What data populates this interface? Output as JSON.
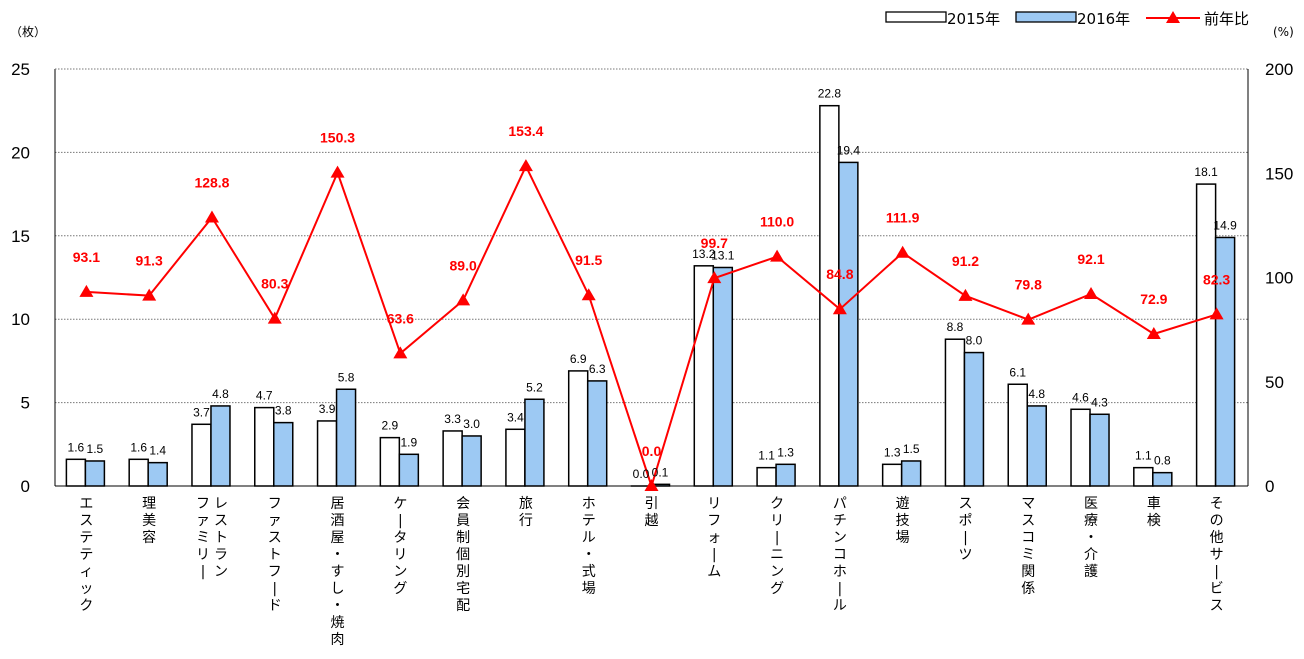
{
  "chart_data": {
    "type": "bar",
    "title": "",
    "left_unit": "（枚）",
    "right_unit": "(%)",
    "categories": [
      "エステティック",
      "理美容",
      "ファミリーレストラン",
      "ファストフード",
      "居酒屋・すし・焼肉",
      "ケータリング",
      "会員制個別宅配",
      "旅行",
      "ホテル・式場",
      "引越",
      "リフォーム",
      "クリーニング",
      "パチンコホール",
      "遊技場",
      "スポーツ",
      "マスコミ関係",
      "医療・介護",
      "車検",
      "その他サービス"
    ],
    "category_lines": [
      [
        "エステティック"
      ],
      [
        "理美容"
      ],
      [
        "ファミリー",
        "レストラン"
      ],
      [
        "ファストフード"
      ],
      [
        "居酒屋・すし・焼肉"
      ],
      [
        "ケータリング"
      ],
      [
        "会員制個別宅配"
      ],
      [
        "旅行"
      ],
      [
        "ホテル・式場"
      ],
      [
        "引越"
      ],
      [
        "リフォーム"
      ],
      [
        "クリーニング"
      ],
      [
        "パチンコホール"
      ],
      [
        "遊技場"
      ],
      [
        "スポーツ"
      ],
      [
        "マスコミ関係"
      ],
      [
        "医療・介護"
      ],
      [
        "車検"
      ],
      [
        "その他サービス"
      ]
    ],
    "series": [
      {
        "name": "2015年",
        "axis": "left",
        "kind": "bar",
        "color": "#ffffff",
        "labels": [
          "1.6",
          "1.6",
          "3.7",
          "4.7",
          "3.9",
          "2.9",
          "3.3",
          "3.4",
          "6.9",
          "0.0",
          "13.2",
          "1.1",
          "22.8",
          "1.3",
          "8.8",
          "6.1",
          "4.6",
          "1.1",
          "18.1"
        ],
        "values": [
          1.6,
          1.6,
          3.7,
          4.7,
          3.9,
          2.9,
          3.3,
          3.4,
          6.9,
          0.0,
          13.2,
          1.1,
          22.8,
          1.3,
          8.8,
          6.1,
          4.6,
          1.1,
          18.1
        ]
      },
      {
        "name": "2016年",
        "axis": "left",
        "kind": "bar",
        "color": "#9dc9f3",
        "labels": [
          "1.5",
          "1.4",
          "4.8",
          "3.8",
          "5.8",
          "1.9",
          "3.0",
          "5.2",
          "6.3",
          "0.1",
          "13.1",
          "1.3",
          "19.4",
          "1.5",
          "8.0",
          "4.8",
          "4.3",
          "0.8",
          "14.9"
        ],
        "values": [
          1.5,
          1.4,
          4.8,
          3.8,
          5.8,
          1.9,
          3.0,
          5.2,
          6.3,
          0.1,
          13.1,
          1.3,
          19.4,
          1.5,
          8.0,
          4.8,
          4.3,
          0.8,
          14.9
        ]
      },
      {
        "name": "前年比",
        "axis": "right",
        "kind": "line",
        "color": "#ff0000",
        "labels": [
          "93.1",
          "91.3",
          "128.8",
          "80.3",
          "150.3",
          "63.6",
          "89.0",
          "153.4",
          "91.5",
          "0.0",
          "99.7",
          "110.0",
          "84.8",
          "111.9",
          "91.2",
          "79.8",
          "92.1",
          "72.9",
          "82.3"
        ],
        "values": [
          93.1,
          91.3,
          128.8,
          80.3,
          150.3,
          63.6,
          89.0,
          153.4,
          91.5,
          0.0,
          99.7,
          110.0,
          84.8,
          111.9,
          91.2,
          79.8,
          92.1,
          72.9,
          82.3
        ]
      }
    ],
    "ylim_left": [
      0,
      25
    ],
    "yticks_left": [
      "0",
      "5",
      "10",
      "15",
      "20",
      "25"
    ],
    "ylim_right": [
      0,
      200
    ],
    "yticks_right": [
      "0",
      "50",
      "100",
      "150",
      "200"
    ],
    "grid": true,
    "legend_position": "top-right"
  }
}
